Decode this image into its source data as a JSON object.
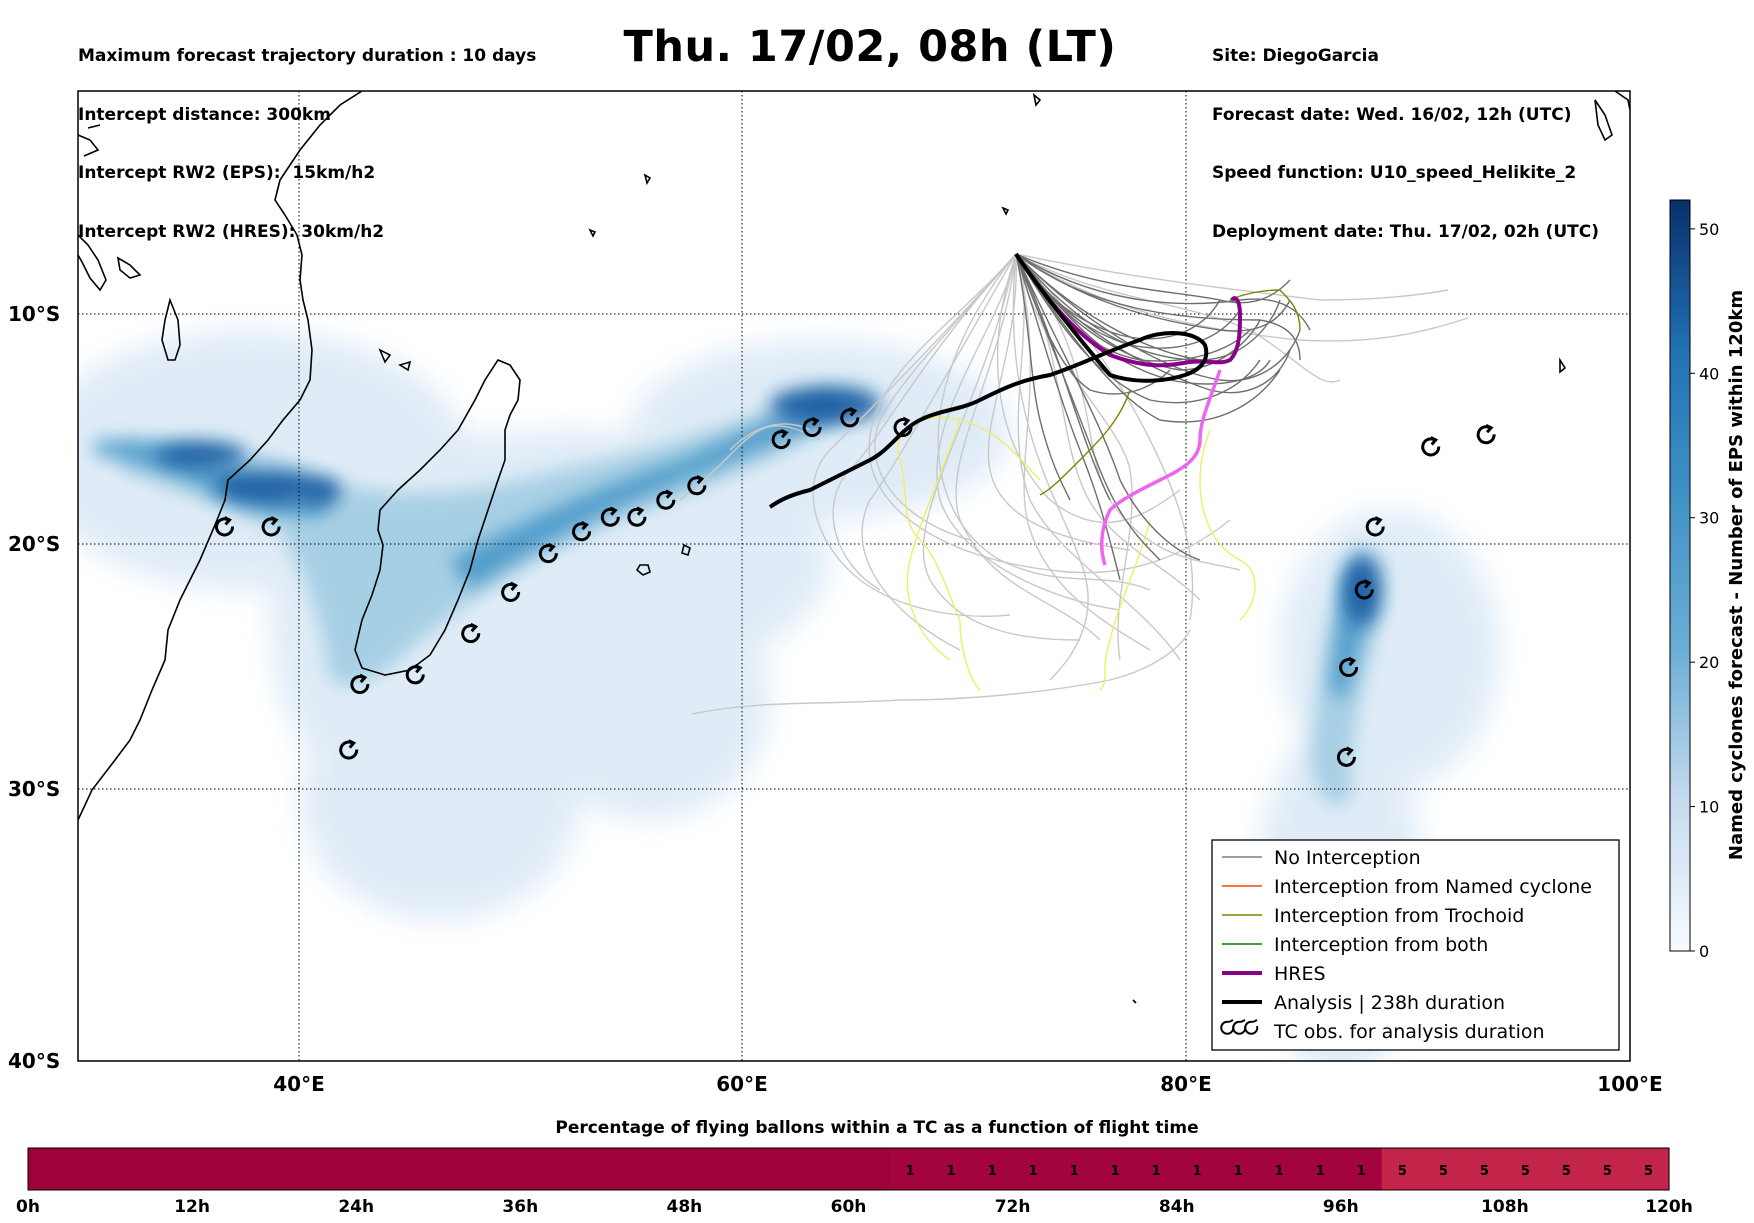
{
  "header_left": [
    "Maximum forecast trajectory duration : 10 days",
    "Intercept distance: 300km",
    "Intercept RW2 (EPS):  15km/h2",
    "Intercept RW2 (HRES): 30km/h2"
  ],
  "header_right": [
    "Site: DiegoGarcia",
    "Forecast date: Wed. 16/02, 12h (UTC)",
    "Speed function: U10_speed_Helikite_2",
    "Deployment date: Thu. 17/02, 02h (UTC)"
  ],
  "title": "Thu. 17/02, 08h (LT)",
  "map": {
    "lat_labels": [
      "10°S",
      "20°S",
      "30°S",
      "40°S"
    ],
    "lon_labels": [
      "40°E",
      "60°E",
      "80°E",
      "100°E"
    ],
    "lon_range": [
      30,
      100
    ],
    "lat_range": [
      -40,
      0
    ],
    "colors": {
      "no_interception": "#808080",
      "named_cyclone": "#ff4500",
      "trochoid": "#808000",
      "both": "#008000",
      "hres": "#8b008b",
      "analysis": "#000000",
      "light_traj": "#c8c8c8",
      "yellow_traj": "#eeee66",
      "pink_traj": "#ee66ee"
    },
    "legend": [
      {
        "label": "No Interception",
        "color": "#808080"
      },
      {
        "label": "Interception from Named cyclone",
        "color": "#ff4500"
      },
      {
        "label": "Interception from Trochoid",
        "color": "#808000"
      },
      {
        "label": "Interception from both",
        "color": "#008000"
      },
      {
        "label": "HRES",
        "color": "#8b008b"
      },
      {
        "label": "Analysis | 238h duration",
        "color": "#000000"
      },
      {
        "label": "TC obs. for analysis duration",
        "icon": "cyclone-icon"
      }
    ],
    "tc_observations": [
      [
        36.7,
        -18.0
      ],
      [
        38.8,
        -18.0
      ],
      [
        42.8,
        -24.5
      ],
      [
        42.3,
        -27.2
      ],
      [
        45.3,
        -24.1
      ],
      [
        47.8,
        -22.4
      ],
      [
        49.6,
        -20.7
      ],
      [
        51.3,
        -19.1
      ],
      [
        52.8,
        -18.2
      ],
      [
        54.1,
        -17.6
      ],
      [
        55.3,
        -17.6
      ],
      [
        56.6,
        -16.9
      ],
      [
        58.0,
        -16.3
      ],
      [
        61.8,
        -14.4
      ],
      [
        63.2,
        -13.9
      ],
      [
        64.9,
        -13.5
      ],
      [
        67.3,
        -13.9
      ],
      [
        91.1,
        -14.7
      ],
      [
        93.6,
        -14.2
      ],
      [
        88.6,
        -18.0
      ],
      [
        88.1,
        -20.6
      ],
      [
        87.4,
        -23.8
      ],
      [
        87.3,
        -27.5
      ]
    ]
  },
  "colorbar": {
    "label": "Named cyclones forecast - Number of EPS within 120km",
    "ticks": [
      "0",
      "10",
      "20",
      "30",
      "40",
      "50"
    ],
    "vmin": 0,
    "vmax": 52
  },
  "timebar": {
    "title": "Percentage of flying ballons within a TC as a function of flight time",
    "tick_labels": [
      "0h",
      "12h",
      "24h",
      "36h",
      "48h",
      "60h",
      "72h",
      "84h",
      "96h",
      "108h",
      "120h"
    ],
    "cell_values": [
      "",
      "",
      "",
      "",
      "",
      "",
      "",
      "",
      "",
      "",
      "",
      "",
      "",
      "",
      "",
      "",
      "",
      "",
      "",
      "",
      "",
      "1",
      "1",
      "1",
      "1",
      "1",
      "1",
      "1",
      "1",
      "1",
      "1",
      "1",
      "1",
      "5",
      "5",
      "5",
      "5",
      "5",
      "5",
      "5"
    ]
  }
}
